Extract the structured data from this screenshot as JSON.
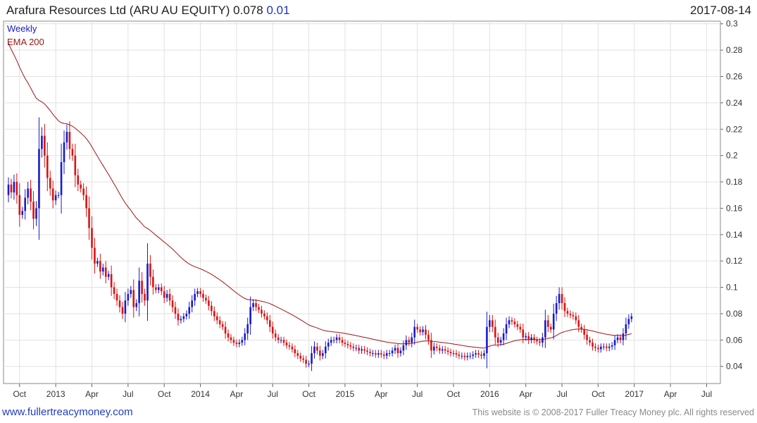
{
  "header": {
    "title": "Arafura Resources Ltd (ARU AU EQUITY) 0.078",
    "change": "0.01",
    "date": "2017-08-14"
  },
  "legend": {
    "series1": "Weekly",
    "series2": "EMA 200"
  },
  "footer": {
    "link": "www.fullertreacymoney.com",
    "copyright": "This website is © 2008-2017 Fuller Treacy Money plc. All rights reserved"
  },
  "chart_data": {
    "type": "candlestick",
    "y_ticks": [
      "0.04",
      "0.06",
      "0.08",
      "0.1",
      "0.12",
      "0.14",
      "0.16",
      "0.18",
      "0.2",
      "0.22",
      "0.24",
      "0.26",
      "0.28",
      "0.3"
    ],
    "ylim": [
      0.027,
      0.302
    ],
    "x_ticks": [
      "Oct",
      "2013",
      "Apr",
      "Jul",
      "Oct",
      "2014",
      "Apr",
      "Jul",
      "Oct",
      "2015",
      "Apr",
      "Jul",
      "Oct",
      "2016",
      "Apr",
      "Jul",
      "Oct",
      "2017",
      "Apr",
      "Jul"
    ],
    "x_tick_weeks": [
      4,
      17,
      30,
      43,
      56,
      69,
      82,
      95,
      108,
      121,
      134,
      147,
      160,
      173,
      186,
      199,
      212,
      225,
      238,
      251
    ],
    "grid": true,
    "up_color": "#1a1acc",
    "down_color": "#dd1111",
    "ema_color": "#a01414",
    "closes": [
      0.178,
      0.172,
      0.18,
      0.17,
      0.155,
      0.158,
      0.168,
      0.175,
      0.165,
      0.152,
      0.16,
      0.205,
      0.215,
      0.2,
      0.183,
      0.175,
      0.166,
      0.17,
      0.17,
      0.195,
      0.21,
      0.218,
      0.205,
      0.2,
      0.185,
      0.178,
      0.175,
      0.17,
      0.16,
      0.145,
      0.13,
      0.118,
      0.12,
      0.112,
      0.115,
      0.108,
      0.11,
      0.1,
      0.095,
      0.09,
      0.085,
      0.08,
      0.09,
      0.095,
      0.098,
      0.085,
      0.088,
      0.105,
      0.095,
      0.09,
      0.118,
      0.108,
      0.1,
      0.098,
      0.1,
      0.097,
      0.092,
      0.095,
      0.09,
      0.085,
      0.08,
      0.075,
      0.076,
      0.078,
      0.08,
      0.085,
      0.09,
      0.095,
      0.097,
      0.095,
      0.092,
      0.09,
      0.086,
      0.082,
      0.078,
      0.075,
      0.072,
      0.07,
      0.065,
      0.062,
      0.06,
      0.058,
      0.057,
      0.058,
      0.06,
      0.065,
      0.072,
      0.085,
      0.088,
      0.085,
      0.083,
      0.08,
      0.078,
      0.075,
      0.07,
      0.065,
      0.062,
      0.06,
      0.06,
      0.058,
      0.056,
      0.055,
      0.053,
      0.05,
      0.048,
      0.046,
      0.045,
      0.042,
      0.042,
      0.05,
      0.055,
      0.052,
      0.048,
      0.05,
      0.055,
      0.058,
      0.06,
      0.06,
      0.062,
      0.06,
      0.058,
      0.057,
      0.056,
      0.055,
      0.054,
      0.054,
      0.052,
      0.053,
      0.052,
      0.051,
      0.05,
      0.05,
      0.049,
      0.05,
      0.049,
      0.048,
      0.05,
      0.05,
      0.052,
      0.054,
      0.05,
      0.052,
      0.056,
      0.06,
      0.058,
      0.062,
      0.07,
      0.068,
      0.066,
      0.068,
      0.064,
      0.06,
      0.052,
      0.055,
      0.054,
      0.052,
      0.053,
      0.052,
      0.051,
      0.05,
      0.05,
      0.049,
      0.048,
      0.048,
      0.047,
      0.048,
      0.048,
      0.049,
      0.05,
      0.049,
      0.048,
      0.05,
      0.07,
      0.075,
      0.07,
      0.062,
      0.058,
      0.06,
      0.065,
      0.072,
      0.075,
      0.074,
      0.072,
      0.07,
      0.068,
      0.062,
      0.063,
      0.06,
      0.062,
      0.06,
      0.059,
      0.058,
      0.062,
      0.075,
      0.07,
      0.068,
      0.08,
      0.088,
      0.095,
      0.088,
      0.082,
      0.08,
      0.079,
      0.078,
      0.075,
      0.07,
      0.068,
      0.064,
      0.06,
      0.058,
      0.055,
      0.054,
      0.053,
      0.055,
      0.055,
      0.054,
      0.055,
      0.056,
      0.06,
      0.062,
      0.06,
      0.065,
      0.072,
      0.076,
      0.078
    ]
  }
}
